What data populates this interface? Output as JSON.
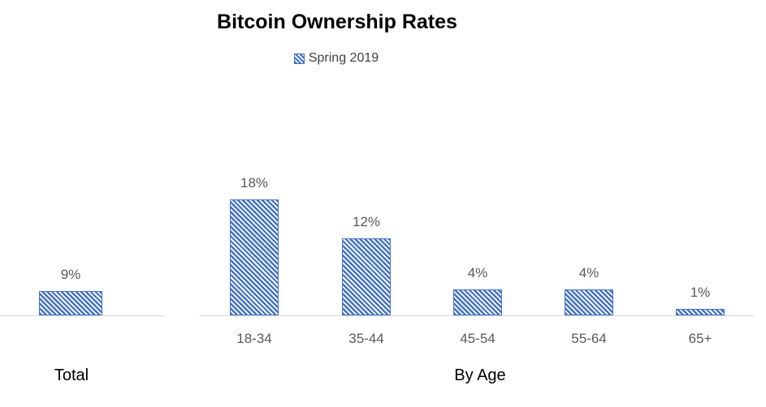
{
  "title": "Bitcoin Ownership Rates",
  "legend": {
    "label": "Spring 2019"
  },
  "colors": {
    "bar_fill": "#4472C4",
    "bar_border": "#4472C4",
    "axis_line": "#D9D9D9",
    "value_label": "#595959",
    "category_label": "#595959",
    "group_label": "#000000",
    "legend_text": "#404040",
    "title_text": "#000000"
  },
  "chart_data": {
    "type": "bar",
    "title": "Bitcoin Ownership Rates",
    "series_name": "Spring 2019",
    "unit": "percent",
    "legend_position": "top-center",
    "grid": false,
    "y_axis_visible": false,
    "bar_style": "diagonal-hatch-blue",
    "note": "Two side-by-side panels sharing one baseline; panels are drawn at different value-to-pixel scales as in source image",
    "groups": [
      {
        "label": "Total",
        "categories": [
          "Total"
        ],
        "values": [
          9
        ],
        "value_labels": [
          "9%"
        ],
        "category_labels_visible": false
      },
      {
        "label": "By Age",
        "categories": [
          "18-34",
          "35-44",
          "45-54",
          "55-64",
          "65+"
        ],
        "values": [
          18,
          12,
          4,
          4,
          1
        ],
        "value_labels": [
          "18%",
          "12%",
          "4%",
          "4%",
          "1%"
        ],
        "category_labels_visible": true
      }
    ]
  }
}
